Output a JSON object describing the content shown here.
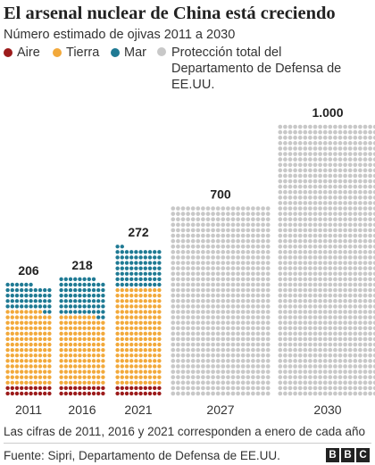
{
  "title": "El arsenal nuclear de China está creciendo",
  "subtitle": "Número estimado de ojivas 2011 a 2030",
  "legend": [
    {
      "label": "Aire",
      "color": "#9c1b1b"
    },
    {
      "label": "Tierra",
      "color": "#f2a93b"
    },
    {
      "label": "Mar",
      "color": "#1f7a94"
    },
    {
      "label": "Protección total del Departamento de Defensa de EE.UU.",
      "color": "#c8c8c8"
    }
  ],
  "footnote": "Las cifras de 2011, 2016 y 2021 corresponden a enero de cada año",
  "source": "Fuente: Sipri, Departamento de Defensa de EE.UU.",
  "logo": [
    "B",
    "B",
    "C"
  ],
  "chart_data": {
    "type": "bar",
    "subtype": "stacked dot matrix (waffle)",
    "categories": [
      "2011",
      "2016",
      "2021",
      "2027",
      "2030"
    ],
    "totals": [
      "206",
      "218",
      "272",
      "700",
      "1.000"
    ],
    "series": [
      {
        "name": "Aire",
        "color": "#9c1b1b",
        "values": [
          20,
          20,
          20,
          0,
          0
        ]
      },
      {
        "name": "Tierra",
        "color": "#f2a93b",
        "values": [
          138,
          128,
          180,
          0,
          0
        ]
      },
      {
        "name": "Mar",
        "color": "#1f7a94",
        "values": [
          48,
          70,
          72,
          0,
          0
        ]
      },
      {
        "name": "Protección total del Departamento de Defensa de EE.UU.",
        "color": "#c8c8c8",
        "values": [
          0,
          0,
          0,
          700,
          1000
        ]
      }
    ],
    "dots_per_row": 10
  }
}
